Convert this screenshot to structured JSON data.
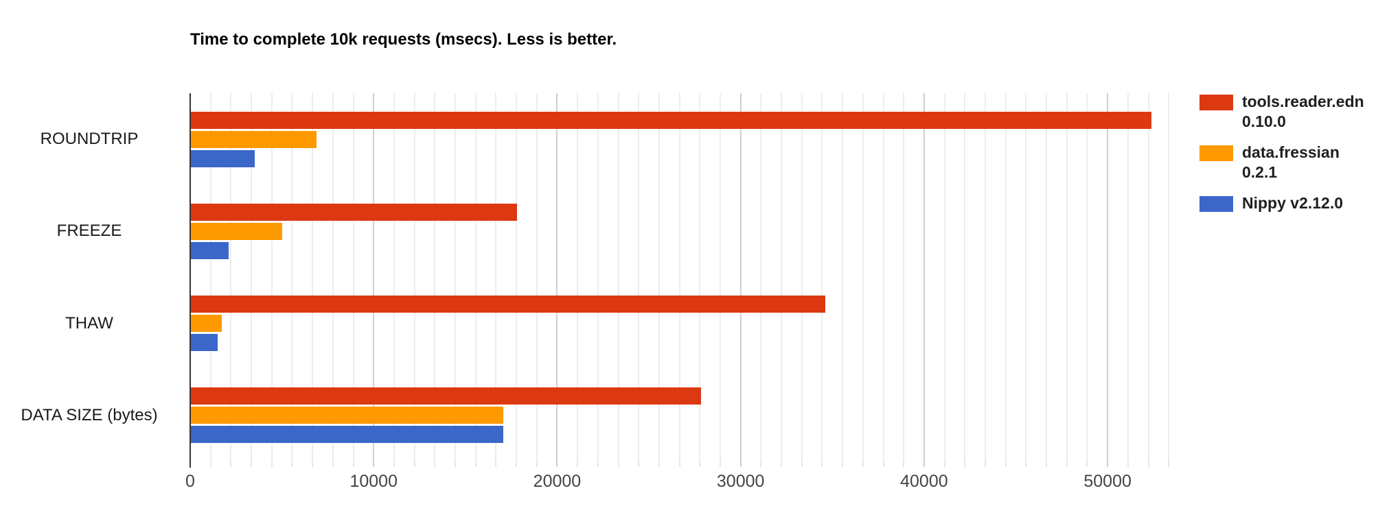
{
  "title": "Time to complete 10k requests (msecs). Less is better.",
  "colors": {
    "background": "#ffffff",
    "title": "#000000",
    "category_label": "#1a1a1a",
    "tick_label": "#444444",
    "axis": "#333333",
    "grid_minor": "#ededed",
    "grid_major": "#cfcfcf",
    "bar_red": "#dc3912",
    "bar_orange": "#ff9900",
    "bar_blue": "#3a67c8",
    "legend_text": "#1f1f1f"
  },
  "chart_data": {
    "type": "bar",
    "orientation": "horizontal",
    "title": "Time to complete 10k requests (msecs). Less is better.",
    "categories": [
      "ROUNDTRIP",
      "FREEZE",
      "THAW",
      "DATA SIZE (bytes)"
    ],
    "series": [
      {
        "name": "tools.reader.edn 0.10.0",
        "legend_lines": [
          "tools.reader.edn",
          "0.10.0"
        ],
        "color": "#dc3912",
        "values": [
          52400,
          17800,
          34600,
          27850
        ]
      },
      {
        "name": "data.fressian 0.2.1",
        "legend_lines": [
          "data.fressian",
          "0.2.1"
        ],
        "color": "#ff9900",
        "values": [
          6900,
          5000,
          1720,
          17050
        ]
      },
      {
        "name": "Nippy v2.12.0",
        "legend_lines": [
          "Nippy v2.12.0"
        ],
        "color": "#3a67c8",
        "values": [
          3500,
          2100,
          1500,
          17050
        ]
      }
    ],
    "xlabel": "",
    "ylabel": "",
    "xlim": [
      0,
      53700
    ],
    "x_ticks": [
      0,
      10000,
      20000,
      30000,
      40000,
      50000
    ],
    "minor_gridline_step": 1111.11,
    "major_gridline_every": 9,
    "grid": true,
    "legend_position": "right"
  }
}
